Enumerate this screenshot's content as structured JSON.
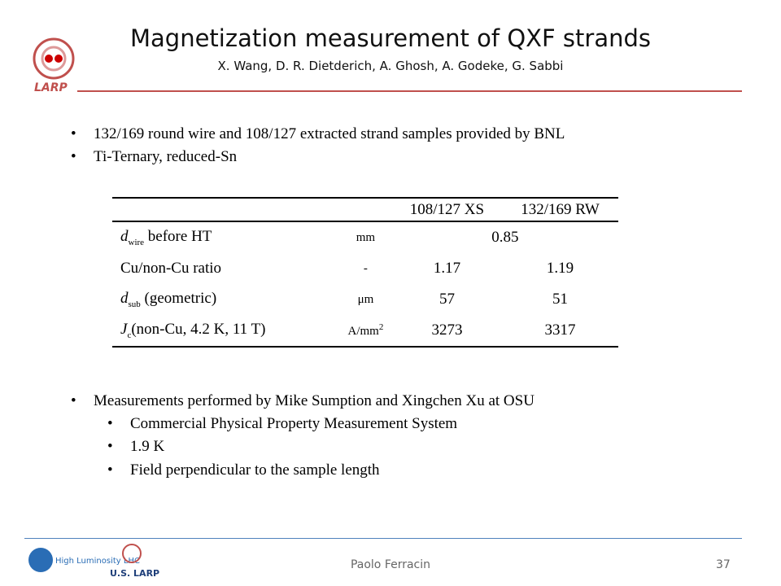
{
  "header": {
    "title": "Magnetization measurement of QXF strands",
    "authors": "X. Wang, D. R. Dietderich, A. Ghosh, A. Godeke, G. Sabbi",
    "logo": "LARP"
  },
  "bullets": [
    "132/169 round wire and 108/127 extracted strand samples provided by BNL",
    "Ti-Ternary, reduced-Sn"
  ],
  "table": {
    "columns": [
      "108/127 XS",
      "132/169 RW"
    ],
    "rows": [
      {
        "label": {
          "main": "d",
          "sub": "wire",
          "rest": " before HT"
        },
        "unit": {
          "main": "mm"
        },
        "cells": [
          "0.85"
        ]
      },
      {
        "label": {
          "main": "Cu/non-Cu ratio"
        },
        "unit": {
          "main": "-"
        },
        "cells": [
          "1.17",
          "1.19"
        ]
      },
      {
        "label": {
          "main": "d",
          "sub": "sub",
          "rest": " (geometric)"
        },
        "unit": {
          "main": "μm"
        },
        "cells": [
          "57",
          "51"
        ]
      },
      {
        "label": {
          "main": "J",
          "sub": "c",
          "rest": "(non-Cu, 4.2 K, 11 T)"
        },
        "unit": {
          "main": "A/mm",
          "sup": "2"
        },
        "cells": [
          "3273",
          "3317"
        ]
      }
    ]
  },
  "measurements": {
    "text": "Measurements performed by Mike Sumption and Xingchen Xu at OSU",
    "subitems": [
      "Commercial Physical Property Measurement System",
      "1.9 K",
      "Field perpendicular to the sample length"
    ]
  },
  "footer": {
    "presenter": "Paolo Ferracin",
    "page": "37",
    "logos": [
      "High Luminosity LHC",
      "U.S. LARP"
    ]
  }
}
